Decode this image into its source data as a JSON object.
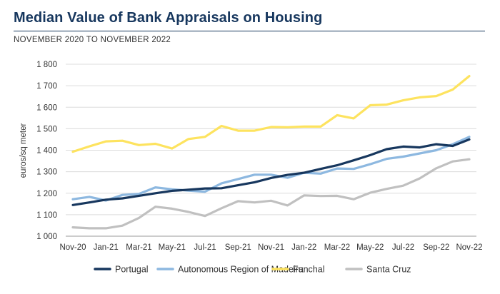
{
  "header": {
    "title": "Median Value of Bank Appraisals on Housing",
    "subtitle": "NOVEMBER 2020 TO NOVEMBER 2022"
  },
  "chart_data": {
    "type": "line",
    "title": "Median Value of Bank Appraisals on Housing",
    "subtitle": "NOVEMBER 2020 TO NOVEMBER 2022",
    "xlabel": "",
    "ylabel": "euros/sq meter",
    "ylim": [
      1000,
      1800
    ],
    "yticks": [
      1000,
      1100,
      1200,
      1300,
      1400,
      1500,
      1600,
      1700,
      1800
    ],
    "ytick_labels": [
      "1 000",
      "1 100",
      "1 200",
      "1 300",
      "1 400",
      "1 500",
      "1 600",
      "1 700",
      "1 800"
    ],
    "grid": true,
    "legend_position": "bottom",
    "x": [
      "Nov-20",
      "Dec-20",
      "Jan-21",
      "Feb-21",
      "Mar-21",
      "Apr-21",
      "May-21",
      "Jun-21",
      "Jul-21",
      "Aug-21",
      "Sep-21",
      "Oct-21",
      "Nov-21",
      "Dec-21",
      "Jan-22",
      "Feb-22",
      "Mar-22",
      "Apr-22",
      "May-22",
      "Jun-22",
      "Jul-22",
      "Aug-22",
      "Sep-22",
      "Oct-22",
      "Nov-22"
    ],
    "x_tick_labels": [
      "Nov-20",
      "Jan-21",
      "Mar-21",
      "May-21",
      "Jul-21",
      "Sep-21",
      "Nov-21",
      "Jan-22",
      "Mar-22",
      "May-22",
      "Jul-22",
      "Sep-22",
      "Nov-22"
    ],
    "series": [
      {
        "name": "Portugal",
        "color": "#17375e",
        "values": [
          1145,
          1157,
          1170,
          1176,
          1188,
          1200,
          1211,
          1216,
          1222,
          1223,
          1237,
          1251,
          1271,
          1285,
          1295,
          1313,
          1330,
          1353,
          1377,
          1405,
          1417,
          1413,
          1428,
          1420,
          1450
        ]
      },
      {
        "name": "Autonomous Region of Madeira",
        "color": "#8db8e0",
        "values": [
          1172,
          1183,
          1166,
          1192,
          1197,
          1227,
          1218,
          1212,
          1207,
          1246,
          1266,
          1286,
          1286,
          1272,
          1295,
          1291,
          1315,
          1313,
          1335,
          1360,
          1370,
          1385,
          1400,
          1428,
          1462
        ]
      },
      {
        "name": "Funchal",
        "color": "#fde35f",
        "values": [
          1393,
          1418,
          1441,
          1444,
          1424,
          1430,
          1408,
          1452,
          1462,
          1513,
          1491,
          1491,
          1508,
          1507,
          1510,
          1510,
          1563,
          1548,
          1609,
          1612,
          1632,
          1646,
          1652,
          1682,
          1745
        ]
      },
      {
        "name": "Santa Cruz",
        "color": "#c0c0c0",
        "values": [
          1041,
          1037,
          1037,
          1049,
          1085,
          1137,
          1128,
          1113,
          1094,
          1130,
          1163,
          1157,
          1165,
          1143,
          1190,
          1187,
          1188,
          1172,
          1202,
          1220,
          1235,
          1269,
          1316,
          1348,
          1358
        ]
      }
    ]
  }
}
